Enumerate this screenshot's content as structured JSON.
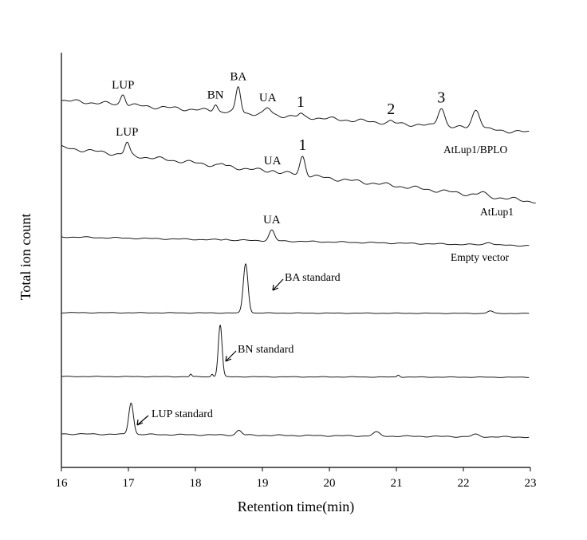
{
  "chart_data": {
    "type": "line",
    "title": "",
    "xlabel": "Retention time(min)",
    "ylabel": "Total ion count",
    "xlim": [
      16,
      23
    ],
    "x_ticks": [
      "16",
      "17",
      "18",
      "19",
      "20",
      "21",
      "22",
      "23"
    ],
    "grid": false,
    "series": [
      {
        "name": "AtLup1/BPLO",
        "peaks": [
          {
            "x": 16.92,
            "h": 0.17,
            "w": 0.035
          },
          {
            "x": 18.3,
            "h": 0.11,
            "w": 0.03
          },
          {
            "x": 18.64,
            "h": 0.4,
            "w": 0.035
          },
          {
            "x": 19.08,
            "h": 0.1,
            "w": 0.045
          },
          {
            "x": 19.57,
            "h": 0.04,
            "w": 0.03
          },
          {
            "x": 20.92,
            "h": 0.02,
            "w": 0.03
          },
          {
            "x": 21.67,
            "h": 0.3,
            "w": 0.05
          },
          {
            "x": 22.19,
            "h": 0.3,
            "w": 0.06
          }
        ]
      },
      {
        "name": "AtLup1",
        "peaks": [
          {
            "x": 16.98,
            "h": 0.38,
            "w": 0.035
          },
          {
            "x": 18.4,
            "h": 0.06,
            "w": 0.03
          },
          {
            "x": 19.15,
            "h": 0.05,
            "w": 0.04
          },
          {
            "x": 19.6,
            "h": 0.6,
            "w": 0.04
          },
          {
            "x": 22.28,
            "h": 0.09,
            "w": 0.05
          }
        ]
      },
      {
        "name": "Empty vector",
        "peaks": [
          {
            "x": 18.45,
            "h": 0.03,
            "w": 0.03
          },
          {
            "x": 19.14,
            "h": 0.38,
            "w": 0.04
          },
          {
            "x": 22.38,
            "h": 0.1,
            "w": 0.05
          }
        ]
      },
      {
        "name": "BA standard",
        "peaks": [
          {
            "x": 18.75,
            "h": 1.0,
            "w": 0.035
          },
          {
            "x": 22.4,
            "h": 0.05,
            "w": 0.04
          }
        ]
      },
      {
        "name": "BN standard",
        "peaks": [
          {
            "x": 17.93,
            "h": 0.05,
            "w": 0.015
          },
          {
            "x": 18.25,
            "h": 0.05,
            "w": 0.015
          },
          {
            "x": 18.37,
            "h": 1.0,
            "w": 0.028
          },
          {
            "x": 21.03,
            "h": 0.04,
            "w": 0.02
          }
        ]
      },
      {
        "name": "LUP standard",
        "peaks": [
          {
            "x": 17.04,
            "h": 1.0,
            "w": 0.035
          },
          {
            "x": 18.65,
            "h": 0.15,
            "w": 0.04
          },
          {
            "x": 20.7,
            "h": 0.12,
            "w": 0.05
          },
          {
            "x": 22.18,
            "h": 0.07,
            "w": 0.05
          }
        ]
      }
    ],
    "peak_labels": [
      {
        "text": "LUP",
        "trace": 0,
        "x": 16.92
      },
      {
        "text": "BN",
        "trace": 0,
        "x": 18.3
      },
      {
        "text": "BA",
        "trace": 0,
        "x": 18.64
      },
      {
        "text": "UA",
        "trace": 0,
        "x": 19.08
      },
      {
        "text": "1",
        "trace": 0,
        "x": 19.57,
        "big": true
      },
      {
        "text": "2",
        "trace": 0,
        "x": 20.92,
        "big": true
      },
      {
        "text": "3",
        "trace": 0,
        "x": 21.67,
        "big": true
      },
      {
        "text": "LUP",
        "trace": 1,
        "x": 16.98
      },
      {
        "text": "UA",
        "trace": 1,
        "x": 19.15
      },
      {
        "text": "1",
        "trace": 1,
        "x": 19.6,
        "big": true
      },
      {
        "text": "UA",
        "trace": 2,
        "x": 19.14
      }
    ]
  }
}
